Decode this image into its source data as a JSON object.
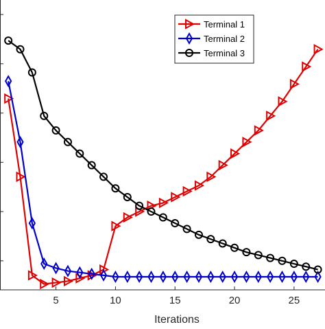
{
  "chart_data": {
    "type": "line",
    "title": "",
    "xlabel": "Iterations",
    "ylabel": "",
    "xlim": [
      0.3,
      27.6
    ],
    "ylim": [
      0,
      1
    ],
    "x_ticks": [
      5,
      10,
      15,
      20,
      25
    ],
    "grid": false,
    "legend_position": "top-right",
    "x": [
      1,
      2,
      3,
      4,
      5,
      6,
      7,
      8,
      9,
      10,
      11,
      12,
      13,
      14,
      15,
      16,
      17,
      18,
      19,
      20,
      21,
      22,
      23,
      24,
      25,
      26,
      27
    ],
    "series": [
      {
        "name": "Terminal 1",
        "color": "#e00000",
        "marker": "triangle-right",
        "values": [
          0.66,
          0.39,
          0.05,
          0.02,
          0.025,
          0.03,
          0.04,
          0.05,
          0.07,
          0.22,
          0.25,
          0.27,
          0.29,
          0.3,
          0.32,
          0.34,
          0.36,
          0.39,
          0.43,
          0.47,
          0.51,
          0.55,
          0.6,
          0.65,
          0.71,
          0.77,
          0.83
        ]
      },
      {
        "name": "Terminal 2",
        "color": "#0000cc",
        "marker": "diamond",
        "values": [
          0.72,
          0.51,
          0.23,
          0.09,
          0.075,
          0.065,
          0.06,
          0.055,
          0.05,
          0.045,
          0.045,
          0.045,
          0.045,
          0.045,
          0.045,
          0.045,
          0.045,
          0.045,
          0.045,
          0.045,
          0.045,
          0.045,
          0.045,
          0.045,
          0.045,
          0.045,
          0.045
        ]
      },
      {
        "name": "Terminal 3",
        "color": "#000000",
        "marker": "circle",
        "values": [
          0.86,
          0.83,
          0.75,
          0.6,
          0.55,
          0.51,
          0.47,
          0.43,
          0.39,
          0.35,
          0.32,
          0.29,
          0.27,
          0.25,
          0.23,
          0.21,
          0.19,
          0.175,
          0.16,
          0.145,
          0.13,
          0.12,
          0.11,
          0.1,
          0.09,
          0.08,
          0.07
        ]
      }
    ]
  }
}
